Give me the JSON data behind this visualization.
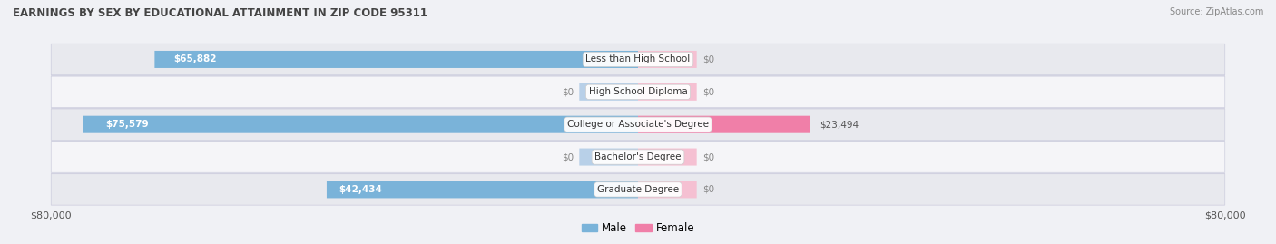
{
  "title": "EARNINGS BY SEX BY EDUCATIONAL ATTAINMENT IN ZIP CODE 95311",
  "source": "Source: ZipAtlas.com",
  "categories": [
    "Less than High School",
    "High School Diploma",
    "College or Associate's Degree",
    "Bachelor's Degree",
    "Graduate Degree"
  ],
  "male_values": [
    65882,
    0,
    75579,
    0,
    42434
  ],
  "female_values": [
    0,
    0,
    23494,
    0,
    0
  ],
  "male_color": "#7ab3d9",
  "female_color": "#f07fa8",
  "male_color_dim": "#b8d0e8",
  "female_color_dim": "#f5c0d2",
  "x_max": 80000,
  "background_color": "#f0f1f5",
  "row_bg_light": "#f5f5f8",
  "row_bg_dark": "#e8e9ee",
  "bar_height": 0.52,
  "stub_size": 8000,
  "legend_male_label": "Male",
  "legend_female_label": "Female",
  "label_value_color": "#555555",
  "label_zero_color": "#888888"
}
